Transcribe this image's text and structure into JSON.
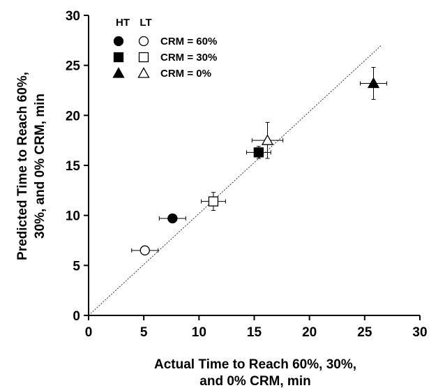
{
  "chart_data": {
    "type": "scatter",
    "xlabel": [
      "Actual Time to Reach 60%, 30%,",
      "and 0% CRM, min"
    ],
    "ylabel": [
      "Predicted Time to Reach 60%,",
      "30%, and 0% CRM, min"
    ],
    "xlim": [
      0,
      30
    ],
    "ylim": [
      0,
      30
    ],
    "xticks": [
      "0",
      "5",
      "10",
      "15",
      "20",
      "25",
      "30"
    ],
    "yticks": [
      "0",
      "5",
      "10",
      "15",
      "20",
      "25",
      "30"
    ],
    "grid": false,
    "legend_placement": "top-left",
    "legend": {
      "headers": [
        "HT",
        "LT"
      ],
      "entries": [
        "CRM = 60%",
        "CRM = 30%",
        "CRM = 0%"
      ]
    },
    "identity_line": {
      "from": [
        0,
        0
      ],
      "to": [
        26.5,
        27
      ],
      "style": "dotted"
    },
    "series": [
      {
        "group": "HT",
        "crm": "60%",
        "marker": "circle",
        "filled": true,
        "x": 7.6,
        "y": 9.7,
        "xerr": 1.2,
        "yerr": 0.3
      },
      {
        "group": "LT",
        "crm": "60%",
        "marker": "circle",
        "filled": false,
        "x": 5.1,
        "y": 6.5,
        "xerr": 1.2,
        "yerr": 0.4
      },
      {
        "group": "HT",
        "crm": "30%",
        "marker": "square",
        "filled": true,
        "x": 15.4,
        "y": 16.3,
        "xerr": 1.1,
        "yerr": 0.6
      },
      {
        "group": "LT",
        "crm": "30%",
        "marker": "square",
        "filled": false,
        "x": 11.3,
        "y": 11.4,
        "xerr": 1.1,
        "yerr": 0.9
      },
      {
        "group": "HT",
        "crm": "0%",
        "marker": "triangle",
        "filled": true,
        "x": 25.8,
        "y": 23.2,
        "xerr": 1.2,
        "yerr": 1.6
      },
      {
        "group": "LT",
        "crm": "0%",
        "marker": "triangle",
        "filled": false,
        "x": 16.2,
        "y": 17.5,
        "xerr": 1.4,
        "yerr": 1.8
      }
    ]
  }
}
